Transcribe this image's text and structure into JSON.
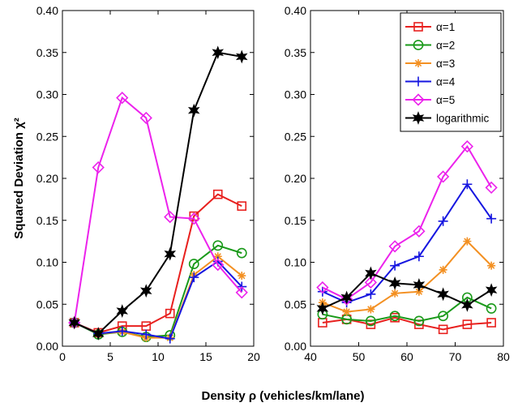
{
  "chart_data": {
    "type": "line",
    "ylabel": "Squared Deviation χ²",
    "xlabel": "Density ρ (vehicles/km/lane)",
    "legend": {
      "position": "top-right",
      "entries": [
        "α=1",
        "α=2",
        "α=3",
        "α=4",
        "α=5",
        "logarithmic"
      ]
    },
    "panels": [
      {
        "xlim": [
          0,
          20
        ],
        "ylim": [
          0,
          0.4
        ],
        "xticks": [
          "0",
          "5",
          "10",
          "15",
          "20"
        ],
        "yticks": [
          "0.00",
          "0.05",
          "0.10",
          "0.15",
          "0.20",
          "0.25",
          "0.30",
          "0.35",
          "0.40"
        ],
        "x": [
          1.25,
          3.75,
          6.25,
          8.75,
          11.25,
          13.75,
          16.25,
          18.75
        ],
        "series": [
          {
            "name": "α=1",
            "color": "#e8201e",
            "marker": "square",
            "values": [
              0.028,
              0.016,
              0.024,
              0.024,
              0.039,
              0.155,
              0.181,
              0.167
            ]
          },
          {
            "name": "α=2",
            "color": "#1a9a1a",
            "marker": "circle",
            "values": [
              0.028,
              0.014,
              0.017,
              0.011,
              0.013,
              0.098,
              0.12,
              0.111
            ]
          },
          {
            "name": "α=3",
            "color": "#f39022",
            "marker": "asterisk",
            "values": [
              0.028,
              0.015,
              0.017,
              0.01,
              0.01,
              0.085,
              0.107,
              0.084
            ]
          },
          {
            "name": "α=4",
            "color": "#1616e0",
            "marker": "plus",
            "values": [
              0.028,
              0.015,
              0.018,
              0.014,
              0.009,
              0.082,
              0.101,
              0.071
            ]
          },
          {
            "name": "α=5",
            "color": "#ec22ec",
            "marker": "diamond",
            "values": [
              0.028,
              0.213,
              0.296,
              0.272,
              0.154,
              0.152,
              0.097,
              0.064
            ]
          },
          {
            "name": "logarithmic",
            "color": "#000000",
            "marker": "star",
            "values": [
              0.028,
              0.015,
              0.042,
              0.066,
              0.11,
              0.281,
              0.35,
              0.345
            ]
          }
        ]
      },
      {
        "xlim": [
          40,
          80
        ],
        "ylim": [
          0,
          0.4
        ],
        "xticks": [
          "40",
          "50",
          "60",
          "70",
          "80"
        ],
        "yticks": [
          "0.00",
          "0.05",
          "0.10",
          "0.15",
          "0.20",
          "0.25",
          "0.30",
          "0.35",
          "0.40"
        ],
        "x": [
          42.5,
          47.5,
          52.5,
          57.5,
          62.5,
          67.5,
          72.5,
          77.5
        ],
        "series": [
          {
            "name": "α=1",
            "color": "#e8201e",
            "marker": "square",
            "values": [
              0.028,
              0.032,
              0.026,
              0.034,
              0.026,
              0.02,
              0.026,
              0.028
            ]
          },
          {
            "name": "α=2",
            "color": "#1a9a1a",
            "marker": "circle",
            "values": [
              0.038,
              0.032,
              0.03,
              0.036,
              0.03,
              0.036,
              0.058,
              0.045
            ]
          },
          {
            "name": "α=3",
            "color": "#f39022",
            "marker": "asterisk",
            "values": [
              0.052,
              0.041,
              0.044,
              0.063,
              0.065,
              0.091,
              0.125,
              0.096
            ]
          },
          {
            "name": "α=4",
            "color": "#1616e0",
            "marker": "plus",
            "values": [
              0.065,
              0.052,
              0.062,
              0.096,
              0.107,
              0.149,
              0.193,
              0.152
            ]
          },
          {
            "name": "α=5",
            "color": "#ec22ec",
            "marker": "diamond",
            "values": [
              0.07,
              0.056,
              0.076,
              0.119,
              0.137,
              0.202,
              0.238,
              0.189
            ]
          },
          {
            "name": "logarithmic",
            "color": "#000000",
            "marker": "star",
            "values": [
              0.045,
              0.058,
              0.087,
              0.075,
              0.073,
              0.062,
              0.049,
              0.067
            ]
          }
        ]
      }
    ]
  }
}
